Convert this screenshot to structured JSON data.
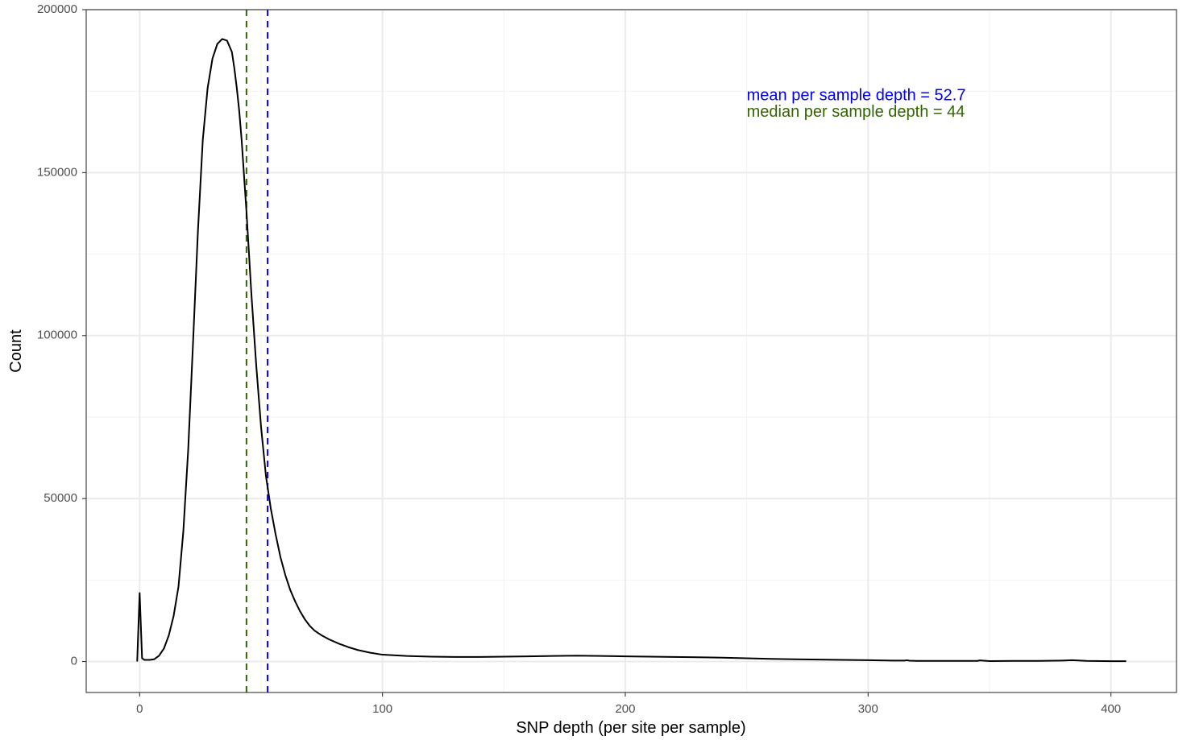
{
  "chart_data": {
    "type": "line",
    "title": "",
    "xlabel": "SNP depth (per site per sample)",
    "ylabel": "Count",
    "xlim": [
      -22,
      427
    ],
    "ylim": [
      -9500,
      200000
    ],
    "x_ticks": [
      0,
      100,
      200,
      300,
      400
    ],
    "x_tick_labels": [
      "0",
      "100",
      "200",
      "300",
      "400"
    ],
    "y_ticks": [
      0,
      50000,
      100000,
      150000,
      200000
    ],
    "y_tick_labels": [
      "0",
      "50000",
      "100000",
      "150000",
      "200000"
    ],
    "x_minor_ticks": [
      50,
      150,
      250,
      350
    ],
    "y_minor_ticks": [
      25000,
      75000,
      125000,
      175000
    ],
    "grid": true,
    "series": [
      {
        "color": "#000000",
        "x": [
          -1,
          0,
          1,
          2,
          4,
          6,
          8,
          10,
          12,
          14,
          16,
          18,
          20,
          22,
          24,
          26,
          28,
          30,
          32,
          34,
          36,
          38,
          39,
          40,
          41,
          42,
          44,
          46,
          48,
          50,
          52,
          54,
          56,
          58,
          60,
          62,
          64,
          66,
          68,
          70,
          72,
          75,
          78,
          82,
          86,
          90,
          95,
          100,
          110,
          120,
          130,
          140,
          150,
          160,
          170,
          180,
          190,
          200,
          210,
          220,
          230,
          240,
          250,
          260,
          270,
          280,
          290,
          300,
          310,
          315,
          316,
          317,
          320,
          330,
          340,
          345,
          346,
          350,
          360,
          370,
          380,
          384,
          390,
          400,
          406
        ],
        "y": [
          200,
          21000,
          1000,
          500,
          500,
          700,
          1800,
          4000,
          8000,
          14000,
          23000,
          40000,
          65000,
          98000,
          132000,
          160000,
          176000,
          185000,
          189500,
          191000,
          190500,
          187000,
          182000,
          176000,
          169000,
          160000,
          138000,
          113000,
          91000,
          72000,
          57000,
          47000,
          39000,
          32000,
          26500,
          22000,
          18500,
          15500,
          13000,
          11000,
          9500,
          8000,
          6800,
          5500,
          4400,
          3500,
          2700,
          2100,
          1700,
          1500,
          1400,
          1400,
          1500,
          1600,
          1700,
          1800,
          1700,
          1600,
          1500,
          1400,
          1300,
          1200,
          1000,
          800,
          700,
          600,
          500,
          400,
          300,
          300,
          400,
          250,
          200,
          200,
          200,
          200,
          350,
          150,
          200,
          200,
          300,
          400,
          200,
          100,
          100
        ]
      }
    ],
    "vlines": [
      {
        "x": 44,
        "color": "#336600",
        "style": "dashed"
      },
      {
        "x": 52.7,
        "color": "#0000ee",
        "style": "dashed"
      }
    ],
    "annotations": [
      {
        "text": "mean per sample depth = 52.7",
        "color": "#0000ee",
        "x": 250,
        "y": 173500
      },
      {
        "text": "median per sample depth = 44",
        "color": "#336600",
        "x": 250,
        "y": 168500
      }
    ]
  }
}
